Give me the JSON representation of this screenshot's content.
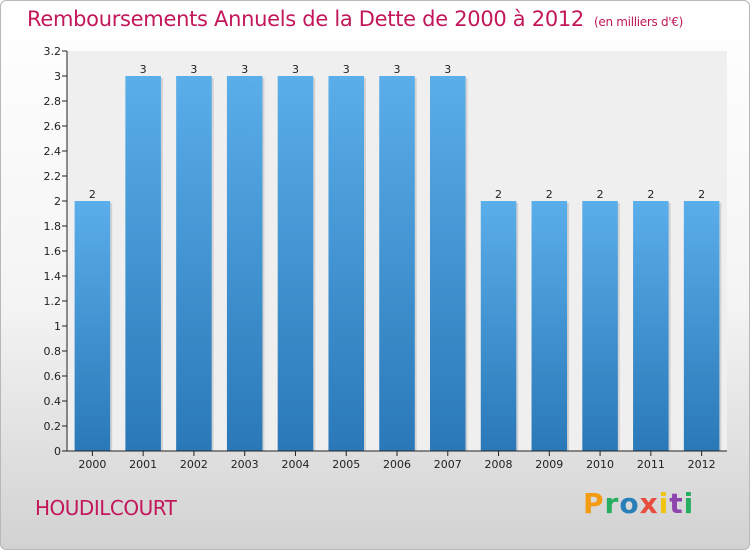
{
  "title": "Remboursements Annuels de la Dette de 2000 à 2012",
  "unit_label": "(en milliers d'€)",
  "town": "HOUDILCOURT",
  "brand": "Proxiti",
  "colors": {
    "title": "#c2185b",
    "bar_top": "#5aaeea",
    "bar_bottom": "#2a78b8"
  },
  "chart_data": {
    "type": "bar",
    "categories": [
      "2000",
      "2001",
      "2002",
      "2003",
      "2004",
      "2005",
      "2006",
      "2007",
      "2008",
      "2009",
      "2010",
      "2011",
      "2012"
    ],
    "values": [
      2,
      3,
      3,
      3,
      3,
      3,
      3,
      3,
      2,
      2,
      2,
      2,
      2
    ],
    "data_labels": [
      "2",
      "3",
      "3",
      "3",
      "3",
      "3",
      "3",
      "3",
      "2",
      "2",
      "2",
      "2",
      "2"
    ],
    "title": "Remboursements Annuels de la Dette de 2000 à 2012",
    "ylim": [
      0,
      3.2
    ],
    "yticks": [
      {
        "value": 0,
        "label": "0"
      },
      {
        "value": 0.2,
        "label": "0.2"
      },
      {
        "value": 0.4,
        "label": "0.4"
      },
      {
        "value": 0.6,
        "label": "0.6"
      },
      {
        "value": 0.8,
        "label": "0.8"
      },
      {
        "value": 1,
        "label": "1"
      },
      {
        "value": 1.2,
        "label": "1.2"
      },
      {
        "value": 1.4,
        "label": "1.4"
      },
      {
        "value": 1.6,
        "label": "1.6"
      },
      {
        "value": 1.8,
        "label": "1.8"
      },
      {
        "value": 2,
        "label": "2"
      },
      {
        "value": 2.2,
        "label": "2.2"
      },
      {
        "value": 2.4,
        "label": "2.4"
      },
      {
        "value": 2.6,
        "label": "2.6"
      },
      {
        "value": 2.8,
        "label": "2.8"
      },
      {
        "value": 3,
        "label": "3"
      },
      {
        "value": 3.2,
        "label": "3.2"
      }
    ],
    "grid": false,
    "legend": "none"
  }
}
